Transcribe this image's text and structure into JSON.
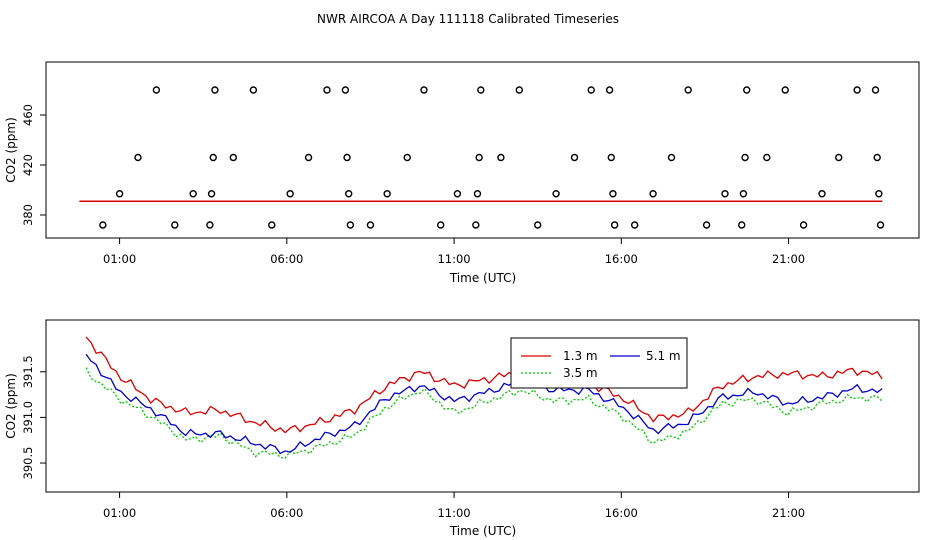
{
  "title": "NWR AIRCOA A  Day 111118  Calibrated Timeseries",
  "colors": {
    "s1": "#dd0000",
    "s2": "#00cc00",
    "s3": "#0000cc",
    "axis": "#000000"
  },
  "chart_data": [
    {
      "type": "scatter",
      "name": "top",
      "xlabel": "Time (UTC)",
      "ylabel": "CO2 (ppm)",
      "xlim_hours": [
        -1.2,
        24.9
      ],
      "ylim": [
        368,
        496
      ],
      "xticks": [
        {
          "v": 1,
          "label": "01:00"
        },
        {
          "v": 6,
          "label": "06:00"
        },
        {
          "v": 11,
          "label": "11:00"
        },
        {
          "v": 16,
          "label": "16:00"
        },
        {
          "v": 21,
          "label": "21:00"
        }
      ],
      "yticks": [
        {
          "v": 380,
          "label": "380"
        },
        {
          "v": 420,
          "label": "420"
        },
        {
          "v": 460,
          "label": "460"
        }
      ],
      "outliers": [
        {
          "x": 0.5,
          "y": 372
        },
        {
          "x": 1.0,
          "y": 397
        },
        {
          "x": 1.55,
          "y": 426
        },
        {
          "x": 2.1,
          "y": 480
        },
        {
          "x": 2.65,
          "y": 372
        },
        {
          "x": 3.2,
          "y": 397
        },
        {
          "x": 3.7,
          "y": 372
        },
        {
          "x": 3.75,
          "y": 397
        },
        {
          "x": 3.8,
          "y": 426
        },
        {
          "x": 3.85,
          "y": 480
        },
        {
          "x": 4.4,
          "y": 426
        },
        {
          "x": 5.0,
          "y": 480
        },
        {
          "x": 5.55,
          "y": 372
        },
        {
          "x": 6.1,
          "y": 397
        },
        {
          "x": 6.65,
          "y": 426
        },
        {
          "x": 7.2,
          "y": 480
        },
        {
          "x": 7.75,
          "y": 480
        },
        {
          "x": 7.8,
          "y": 426
        },
        {
          "x": 7.85,
          "y": 397
        },
        {
          "x": 7.9,
          "y": 372
        },
        {
          "x": 8.5,
          "y": 372
        },
        {
          "x": 9.0,
          "y": 397
        },
        {
          "x": 9.6,
          "y": 426
        },
        {
          "x": 10.1,
          "y": 480
        },
        {
          "x": 10.6,
          "y": 372
        },
        {
          "x": 11.1,
          "y": 397
        },
        {
          "x": 11.65,
          "y": 372
        },
        {
          "x": 11.7,
          "y": 397
        },
        {
          "x": 11.75,
          "y": 426
        },
        {
          "x": 11.8,
          "y": 480
        },
        {
          "x": 12.4,
          "y": 426
        },
        {
          "x": 12.95,
          "y": 480
        },
        {
          "x": 13.5,
          "y": 372
        },
        {
          "x": 14.05,
          "y": 397
        },
        {
          "x": 14.6,
          "y": 426
        },
        {
          "x": 15.1,
          "y": 480
        },
        {
          "x": 15.65,
          "y": 480
        },
        {
          "x": 15.7,
          "y": 426
        },
        {
          "x": 15.75,
          "y": 397
        },
        {
          "x": 15.8,
          "y": 372
        },
        {
          "x": 16.4,
          "y": 372
        },
        {
          "x": 16.95,
          "y": 397
        },
        {
          "x": 17.5,
          "y": 426
        },
        {
          "x": 18.0,
          "y": 480
        },
        {
          "x": 18.55,
          "y": 372
        },
        {
          "x": 19.1,
          "y": 397
        },
        {
          "x": 19.6,
          "y": 372
        },
        {
          "x": 19.65,
          "y": 397
        },
        {
          "x": 19.7,
          "y": 426
        },
        {
          "x": 19.75,
          "y": 480
        },
        {
          "x": 20.35,
          "y": 426
        },
        {
          "x": 20.9,
          "y": 480
        },
        {
          "x": 21.45,
          "y": 372
        },
        {
          "x": 22.0,
          "y": 397
        },
        {
          "x": 22.5,
          "y": 426
        },
        {
          "x": 23.05,
          "y": 480
        },
        {
          "x": 23.6,
          "y": 480
        },
        {
          "x": 23.65,
          "y": 426
        },
        {
          "x": 23.7,
          "y": 397
        },
        {
          "x": 23.75,
          "y": 372
        }
      ],
      "baseline_ppm": 391.0
    },
    {
      "type": "line",
      "name": "bottom",
      "xlabel": "Time (UTC)",
      "ylabel": "CO2 (ppm)",
      "xlim_hours": [
        -1.2,
        24.9
      ],
      "ylim": [
        390.27,
        391.98
      ],
      "xticks": [
        {
          "v": 1,
          "label": "01:00"
        },
        {
          "v": 6,
          "label": "06:00"
        },
        {
          "v": 11,
          "label": "11:00"
        },
        {
          "v": 16,
          "label": "16:00"
        },
        {
          "v": 21,
          "label": "21:00"
        }
      ],
      "yticks": [
        {
          "v": 390.5,
          "label": "390.5"
        },
        {
          "v": 391.0,
          "label": "391.0"
        },
        {
          "v": 391.5,
          "label": "391.5"
        }
      ],
      "x_hours": [
        0,
        1,
        2,
        3,
        4,
        5,
        6,
        7,
        8,
        9,
        10,
        11,
        12,
        13,
        14,
        15,
        16,
        17,
        18,
        19,
        20,
        21,
        22,
        23,
        23.8
      ],
      "series": [
        {
          "name": "1.3 m",
          "color": "#dd0000",
          "values": [
            391.88,
            391.45,
            391.18,
            391.05,
            391.08,
            390.95,
            390.85,
            390.95,
            391.08,
            391.35,
            391.5,
            391.35,
            391.42,
            391.5,
            391.4,
            391.38,
            391.22,
            390.98,
            391.05,
            391.35,
            391.45,
            391.48,
            391.45,
            391.52,
            391.45
          ]
        },
        {
          "name": "3.5 m",
          "color": "#00cc00",
          "values": [
            391.5,
            391.2,
            391.0,
            390.75,
            390.8,
            390.62,
            390.58,
            390.68,
            390.8,
            391.12,
            391.3,
            391.05,
            391.18,
            391.3,
            391.18,
            391.2,
            391.02,
            390.72,
            390.85,
            391.15,
            391.2,
            391.05,
            391.15,
            391.22,
            391.2
          ]
        },
        {
          "name": "5.1 m",
          "color": "#0000cc",
          "values": [
            391.68,
            391.28,
            391.08,
            390.82,
            390.82,
            390.72,
            390.62,
            390.78,
            390.9,
            391.22,
            391.35,
            391.18,
            391.28,
            391.4,
            391.3,
            391.3,
            391.12,
            390.85,
            390.95,
            391.22,
            391.28,
            391.15,
            391.22,
            391.32,
            391.28
          ]
        }
      ],
      "legend": {
        "placement": "top-center",
        "items": [
          "1.3 m",
          "3.5 m",
          "5.1 m"
        ]
      }
    }
  ]
}
